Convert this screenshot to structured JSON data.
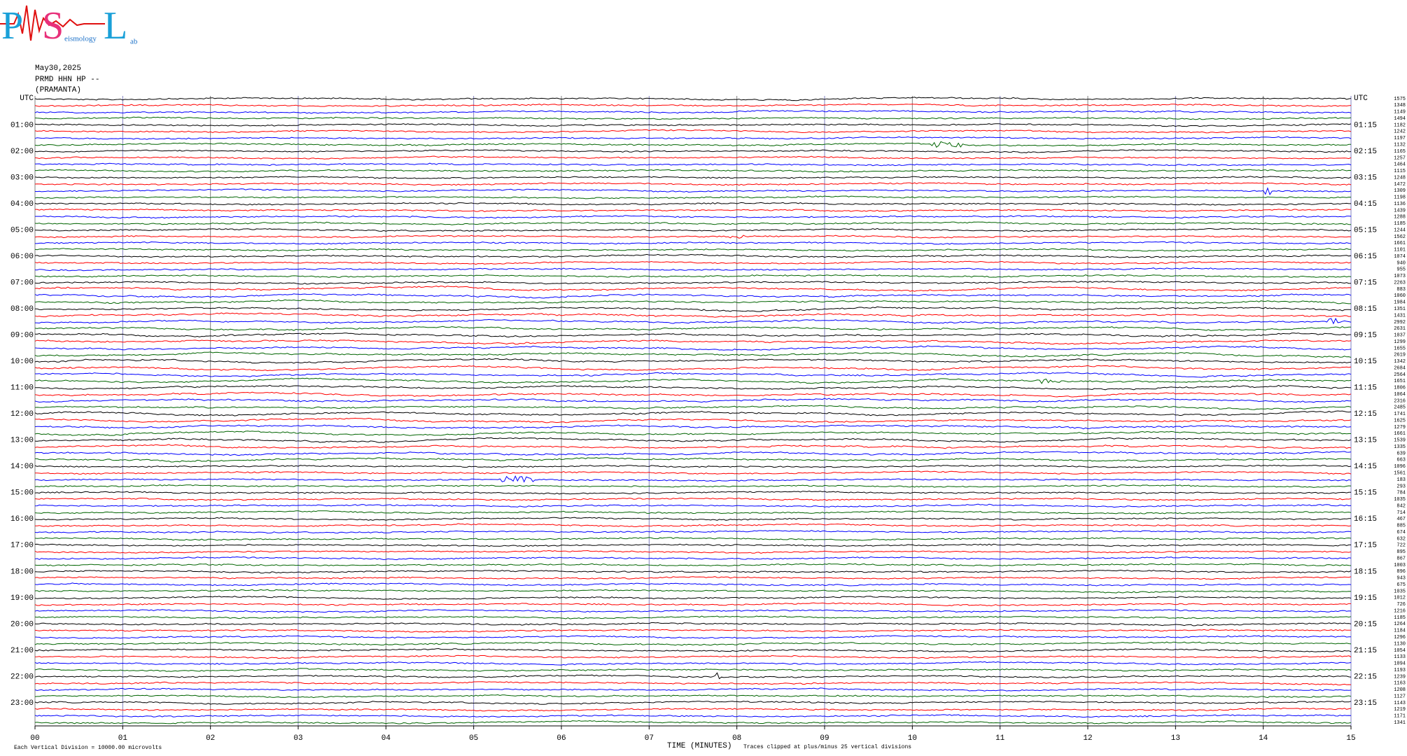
{
  "logo": {
    "letters": [
      "P",
      "S",
      "L"
    ],
    "words": [
      "eismology",
      "ab"
    ]
  },
  "header": {
    "date": "May30,2025",
    "station": "PRMD HHN HP --",
    "site": "(PRAMANTA)"
  },
  "chart_data": {
    "type": "helicorder",
    "x_label": "TIME (MINUTES)",
    "xlim": [
      0,
      15
    ],
    "xticks": [
      {
        "value": 0,
        "label": "00"
      },
      {
        "value": 1,
        "label": "01"
      },
      {
        "value": 2,
        "label": "02"
      },
      {
        "value": 3,
        "label": "03"
      },
      {
        "value": 4,
        "label": "04"
      },
      {
        "value": 5,
        "label": "05"
      },
      {
        "value": 6,
        "label": "06"
      },
      {
        "value": 7,
        "label": "07"
      },
      {
        "value": 8,
        "label": "08"
      },
      {
        "value": 9,
        "label": "09"
      },
      10,
      11,
      12,
      13,
      14,
      15
    ],
    "left_labels": [
      "UTC",
      "01:00",
      "02:00",
      "03:00",
      "04:00",
      "05:00",
      "06:00",
      "07:00",
      "08:00",
      "09:00",
      "10:00",
      "11:00",
      "12:00",
      "13:00",
      "14:00",
      "15:00",
      "16:00",
      "17:00",
      "18:00",
      "19:00",
      "20:00",
      "21:00",
      "22:00",
      "23:00"
    ],
    "right_labels": [
      "UTC",
      "01:15",
      "02:15",
      "03:15",
      "04:15",
      "05:15",
      "06:15",
      "07:15",
      "08:15",
      "09:15",
      "10:15",
      "11:15",
      "12:15",
      "13:15",
      "14:15",
      "15:15",
      "16:15",
      "17:15",
      "18:15",
      "19:15",
      "20:15",
      "21:15",
      "22:15",
      "23:15"
    ],
    "trace_scales": [
      1575,
      1348,
      1149,
      1494,
      1182,
      1242,
      1197,
      1132,
      1165,
      1257,
      1464,
      1115,
      1248,
      1472,
      1309,
      1198,
      1136,
      1439,
      1288,
      1185,
      1244,
      1562,
      1661,
      1101,
      1074,
      940,
      955,
      1073,
      2263,
      883,
      1060,
      1984,
      1351,
      1431,
      2992,
      2631,
      1037,
      1299,
      1655,
      2619,
      1342,
      2684,
      2564,
      1651,
      1806,
      1064,
      2316,
      2485,
      1741,
      1625,
      1279,
      1661,
      1539,
      1335,
      639,
      663,
      1096,
      1561,
      183,
      293,
      784,
      1035,
      842,
      714,
      467,
      885,
      674,
      632,
      722,
      895,
      867,
      1003,
      896,
      943,
      675,
      1035,
      1012,
      726,
      1216,
      1185,
      1264,
      1184,
      1296,
      1130,
      1054,
      1133,
      1094,
      1193,
      1239,
      1163,
      1208,
      1127,
      1143,
      1219,
      1171,
      1341
    ],
    "colors": [
      "#000000",
      "#ff0000",
      "#0000ff",
      "#006400"
    ],
    "scale_note": "Each Vertical Division = 10000.00 microvolts",
    "clip_note": "Traces clipped at plus/minus 25 vertical divisions"
  }
}
